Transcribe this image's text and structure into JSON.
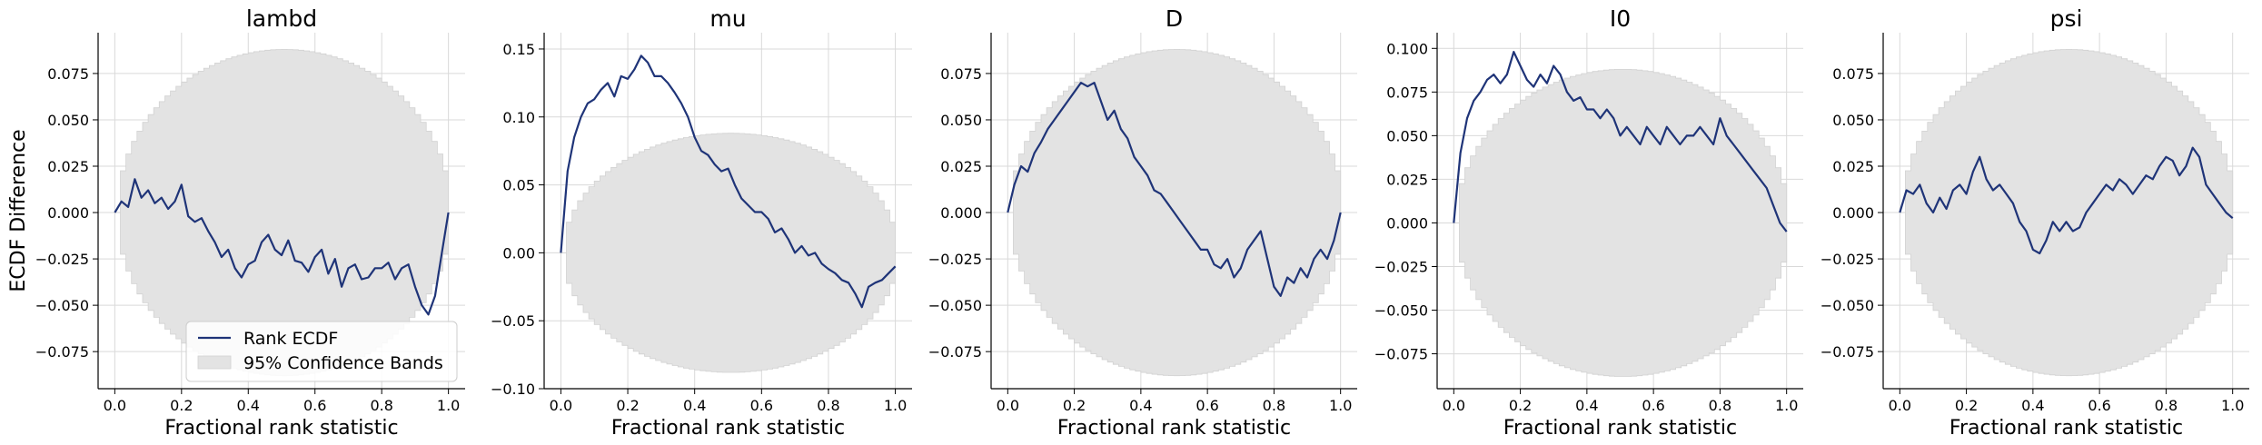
{
  "figure": {
    "ylabel": "ECDF Difference",
    "legend": {
      "placement": "lower-right of first panel",
      "entries": [
        {
          "label": "Rank ECDF",
          "color": "#1f3478",
          "kind": "line"
        },
        {
          "label": "95% Confidence Bands",
          "color": "#e3e3e3",
          "kind": "patch"
        }
      ]
    }
  },
  "chart_data": [
    {
      "type": "line",
      "title": "lambd",
      "xlabel": "Fractional rank statistic",
      "ylabel": "ECDF Difference",
      "xlim": [
        -0.05,
        1.05
      ],
      "ylim": [
        -0.095,
        0.097
      ],
      "xticks": [
        0.0,
        0.2,
        0.4,
        0.6,
        0.8,
        1.0
      ],
      "xtick_labels": [
        "0.0",
        "0.2",
        "0.4",
        "0.6",
        "0.8",
        "1.0"
      ],
      "yticks": [
        -0.075,
        -0.05,
        -0.025,
        0.0,
        0.025,
        0.05,
        0.075
      ],
      "ytick_labels": [
        "−0.075",
        "−0.050",
        "−0.025",
        "0.000",
        "0.025",
        "0.050",
        "0.075"
      ],
      "grid": true,
      "band_halfwidth": 0.088,
      "band_center": 0.0,
      "series": [
        {
          "label": "Rank ECDF",
          "x": [
            0,
            0.02,
            0.04,
            0.06,
            0.08,
            0.1,
            0.12,
            0.14,
            0.16,
            0.18,
            0.2,
            0.22,
            0.24,
            0.26,
            0.28,
            0.3,
            0.32,
            0.34,
            0.36,
            0.38,
            0.4,
            0.42,
            0.44,
            0.46,
            0.48,
            0.5,
            0.52,
            0.54,
            0.56,
            0.58,
            0.6,
            0.62,
            0.64,
            0.66,
            0.68,
            0.7,
            0.72,
            0.74,
            0.76,
            0.78,
            0.8,
            0.82,
            0.84,
            0.86,
            0.88,
            0.9,
            0.92,
            0.94,
            0.96,
            0.98,
            1.0
          ],
          "y": [
            0.0,
            0.006,
            0.003,
            0.018,
            0.008,
            0.012,
            0.005,
            0.008,
            0.002,
            0.006,
            0.015,
            -0.002,
            -0.005,
            -0.003,
            -0.01,
            -0.016,
            -0.024,
            -0.02,
            -0.03,
            -0.035,
            -0.028,
            -0.026,
            -0.016,
            -0.012,
            -0.02,
            -0.023,
            -0.015,
            -0.026,
            -0.027,
            -0.032,
            -0.024,
            -0.02,
            -0.033,
            -0.025,
            -0.04,
            -0.03,
            -0.028,
            -0.036,
            -0.035,
            -0.03,
            -0.03,
            -0.027,
            -0.036,
            -0.03,
            -0.028,
            -0.04,
            -0.05,
            -0.055,
            -0.045,
            -0.022,
            0.0
          ]
        }
      ]
    },
    {
      "type": "line",
      "title": "mu",
      "xlabel": "Fractional rank statistic",
      "ylabel": "",
      "xlim": [
        -0.05,
        1.05
      ],
      "ylim": [
        -0.1,
        0.162
      ],
      "xticks": [
        0.0,
        0.2,
        0.4,
        0.6,
        0.8,
        1.0
      ],
      "xtick_labels": [
        "0.0",
        "0.2",
        "0.4",
        "0.6",
        "0.8",
        "1.0"
      ],
      "yticks": [
        -0.1,
        -0.05,
        0.0,
        0.05,
        0.1,
        0.15
      ],
      "ytick_labels": [
        "−0.10",
        "−0.05",
        "0.00",
        "0.05",
        "0.10",
        "0.15"
      ],
      "grid": true,
      "band_halfwidth": 0.088,
      "band_center": 0.0,
      "series": [
        {
          "label": "Rank ECDF",
          "x": [
            0,
            0.02,
            0.04,
            0.06,
            0.08,
            0.1,
            0.12,
            0.14,
            0.16,
            0.18,
            0.2,
            0.22,
            0.24,
            0.26,
            0.28,
            0.3,
            0.32,
            0.34,
            0.36,
            0.38,
            0.4,
            0.42,
            0.44,
            0.46,
            0.48,
            0.5,
            0.52,
            0.54,
            0.56,
            0.58,
            0.6,
            0.62,
            0.64,
            0.66,
            0.68,
            0.7,
            0.72,
            0.74,
            0.76,
            0.78,
            0.8,
            0.82,
            0.84,
            0.86,
            0.88,
            0.9,
            0.92,
            0.94,
            0.96,
            0.98,
            1.0
          ],
          "y": [
            0.0,
            0.06,
            0.085,
            0.1,
            0.11,
            0.113,
            0.12,
            0.125,
            0.115,
            0.13,
            0.128,
            0.135,
            0.145,
            0.14,
            0.13,
            0.13,
            0.125,
            0.118,
            0.11,
            0.1,
            0.085,
            0.075,
            0.072,
            0.065,
            0.06,
            0.062,
            0.05,
            0.04,
            0.035,
            0.03,
            0.03,
            0.025,
            0.015,
            0.018,
            0.01,
            0.0,
            0.005,
            -0.002,
            0.0,
            -0.008,
            -0.012,
            -0.015,
            -0.02,
            -0.022,
            -0.03,
            -0.04,
            -0.025,
            -0.022,
            -0.02,
            -0.015,
            -0.01
          ]
        }
      ]
    },
    {
      "type": "line",
      "title": "D",
      "xlabel": "Fractional rank statistic",
      "ylabel": "",
      "xlim": [
        -0.05,
        1.05
      ],
      "ylim": [
        -0.095,
        0.097
      ],
      "xticks": [
        0.0,
        0.2,
        0.4,
        0.6,
        0.8,
        1.0
      ],
      "xtick_labels": [
        "0.0",
        "0.2",
        "0.4",
        "0.6",
        "0.8",
        "1.0"
      ],
      "yticks": [
        -0.075,
        -0.05,
        -0.025,
        0.0,
        0.025,
        0.05,
        0.075
      ],
      "ytick_labels": [
        "−0.075",
        "−0.050",
        "−0.025",
        "0.000",
        "0.025",
        "0.050",
        "0.075"
      ],
      "grid": true,
      "band_halfwidth": 0.088,
      "band_center": 0.0,
      "series": [
        {
          "label": "Rank ECDF",
          "x": [
            0,
            0.02,
            0.04,
            0.06,
            0.08,
            0.1,
            0.12,
            0.14,
            0.16,
            0.18,
            0.2,
            0.22,
            0.24,
            0.26,
            0.28,
            0.3,
            0.32,
            0.34,
            0.36,
            0.38,
            0.4,
            0.42,
            0.44,
            0.46,
            0.48,
            0.5,
            0.52,
            0.54,
            0.56,
            0.58,
            0.6,
            0.62,
            0.64,
            0.66,
            0.68,
            0.7,
            0.72,
            0.74,
            0.76,
            0.78,
            0.8,
            0.82,
            0.84,
            0.86,
            0.88,
            0.9,
            0.92,
            0.94,
            0.96,
            0.98,
            1.0
          ],
          "y": [
            0.0,
            0.015,
            0.025,
            0.022,
            0.032,
            0.038,
            0.045,
            0.05,
            0.055,
            0.06,
            0.065,
            0.07,
            0.068,
            0.07,
            0.06,
            0.05,
            0.055,
            0.045,
            0.04,
            0.03,
            0.025,
            0.02,
            0.012,
            0.01,
            0.005,
            0.0,
            -0.005,
            -0.01,
            -0.015,
            -0.02,
            -0.02,
            -0.028,
            -0.03,
            -0.025,
            -0.035,
            -0.03,
            -0.02,
            -0.015,
            -0.01,
            -0.025,
            -0.04,
            -0.045,
            -0.035,
            -0.038,
            -0.03,
            -0.035,
            -0.025,
            -0.02,
            -0.025,
            -0.015,
            0.0
          ]
        }
      ]
    },
    {
      "type": "line",
      "title": "I0",
      "xlabel": "Fractional rank statistic",
      "ylabel": "",
      "xlim": [
        -0.05,
        1.05
      ],
      "ylim": [
        -0.095,
        0.109
      ],
      "xticks": [
        0.0,
        0.2,
        0.4,
        0.6,
        0.8,
        1.0
      ],
      "xtick_labels": [
        "0.0",
        "0.2",
        "0.4",
        "0.6",
        "0.8",
        "1.0"
      ],
      "yticks": [
        -0.075,
        -0.05,
        -0.025,
        0.0,
        0.025,
        0.05,
        0.075,
        0.1
      ],
      "ytick_labels": [
        "−0.075",
        "−0.050",
        "−0.025",
        "0.000",
        "0.025",
        "0.050",
        "0.075",
        "0.100"
      ],
      "grid": true,
      "band_halfwidth": 0.088,
      "band_center": 0.0,
      "series": [
        {
          "label": "Rank ECDF",
          "x": [
            0,
            0.02,
            0.04,
            0.06,
            0.08,
            0.1,
            0.12,
            0.14,
            0.16,
            0.18,
            0.2,
            0.22,
            0.24,
            0.26,
            0.28,
            0.3,
            0.32,
            0.34,
            0.36,
            0.38,
            0.4,
            0.42,
            0.44,
            0.46,
            0.48,
            0.5,
            0.52,
            0.54,
            0.56,
            0.58,
            0.6,
            0.62,
            0.64,
            0.66,
            0.68,
            0.7,
            0.72,
            0.74,
            0.76,
            0.78,
            0.8,
            0.82,
            0.84,
            0.86,
            0.88,
            0.9,
            0.92,
            0.94,
            0.96,
            0.98,
            1.0
          ],
          "y": [
            0.0,
            0.04,
            0.06,
            0.07,
            0.075,
            0.082,
            0.085,
            0.08,
            0.085,
            0.098,
            0.09,
            0.082,
            0.078,
            0.085,
            0.08,
            0.09,
            0.085,
            0.075,
            0.07,
            0.072,
            0.065,
            0.065,
            0.06,
            0.065,
            0.06,
            0.05,
            0.055,
            0.05,
            0.045,
            0.055,
            0.05,
            0.045,
            0.055,
            0.05,
            0.045,
            0.05,
            0.05,
            0.055,
            0.05,
            0.045,
            0.06,
            0.05,
            0.045,
            0.04,
            0.035,
            0.03,
            0.025,
            0.02,
            0.01,
            0.0,
            -0.005
          ]
        }
      ]
    },
    {
      "type": "line",
      "title": "psi",
      "xlabel": "Fractional rank statistic",
      "ylabel": "",
      "xlim": [
        -0.05,
        1.05
      ],
      "ylim": [
        -0.095,
        0.097
      ],
      "xticks": [
        0.0,
        0.2,
        0.4,
        0.6,
        0.8,
        1.0
      ],
      "xtick_labels": [
        "0.0",
        "0.2",
        "0.4",
        "0.6",
        "0.8",
        "1.0"
      ],
      "yticks": [
        -0.075,
        -0.05,
        -0.025,
        0.0,
        0.025,
        0.05,
        0.075
      ],
      "ytick_labels": [
        "−0.075",
        "−0.050",
        "−0.025",
        "0.000",
        "0.025",
        "0.050",
        "0.075"
      ],
      "grid": true,
      "band_halfwidth": 0.088,
      "band_center": 0.0,
      "series": [
        {
          "label": "Rank ECDF",
          "x": [
            0,
            0.02,
            0.04,
            0.06,
            0.08,
            0.1,
            0.12,
            0.14,
            0.16,
            0.18,
            0.2,
            0.22,
            0.24,
            0.26,
            0.28,
            0.3,
            0.32,
            0.34,
            0.36,
            0.38,
            0.4,
            0.42,
            0.44,
            0.46,
            0.48,
            0.5,
            0.52,
            0.54,
            0.56,
            0.58,
            0.6,
            0.62,
            0.64,
            0.66,
            0.68,
            0.7,
            0.72,
            0.74,
            0.76,
            0.78,
            0.8,
            0.82,
            0.84,
            0.86,
            0.88,
            0.9,
            0.92,
            0.94,
            0.96,
            0.98,
            1.0
          ],
          "y": [
            0.0,
            0.012,
            0.01,
            0.015,
            0.005,
            0.0,
            0.008,
            0.002,
            0.012,
            0.015,
            0.01,
            0.022,
            0.03,
            0.018,
            0.012,
            0.015,
            0.01,
            0.005,
            -0.005,
            -0.01,
            -0.02,
            -0.022,
            -0.015,
            -0.005,
            -0.01,
            -0.005,
            -0.01,
            -0.008,
            0.0,
            0.005,
            0.01,
            0.015,
            0.012,
            0.018,
            0.015,
            0.01,
            0.015,
            0.02,
            0.018,
            0.025,
            0.03,
            0.028,
            0.02,
            0.025,
            0.035,
            0.03,
            0.015,
            0.01,
            0.005,
            0.0,
            -0.003
          ]
        }
      ]
    }
  ]
}
